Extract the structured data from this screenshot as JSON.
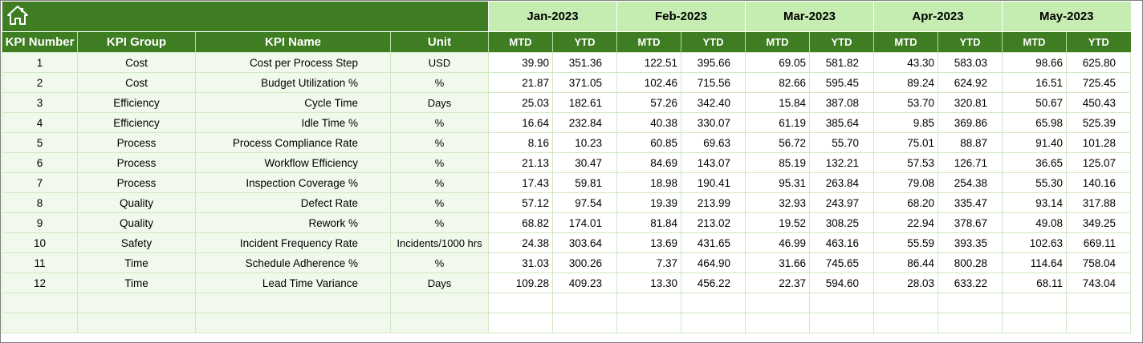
{
  "months": [
    "Jan-2023",
    "Feb-2023",
    "Mar-2023",
    "Apr-2023",
    "May-2023"
  ],
  "headers": {
    "kpi_number": "KPI Number",
    "kpi_group": "KPI Group",
    "kpi_name": "KPI Name",
    "unit": "Unit",
    "mtd": "MTD",
    "ytd": "YTD"
  },
  "rows": [
    {
      "num": "1",
      "group": "Cost",
      "name": "Cost per Process Step",
      "unit": "USD",
      "vals": [
        "39.90",
        "351.36",
        "122.51",
        "395.66",
        "69.05",
        "581.82",
        "43.30",
        "583.03",
        "98.66",
        "625.80"
      ]
    },
    {
      "num": "2",
      "group": "Cost",
      "name": "Budget Utilization %",
      "unit": "%",
      "vals": [
        "21.87",
        "371.05",
        "102.46",
        "715.56",
        "82.66",
        "595.45",
        "89.24",
        "624.92",
        "16.51",
        "725.45"
      ]
    },
    {
      "num": "3",
      "group": "Efficiency",
      "name": "Cycle Time",
      "unit": "Days",
      "vals": [
        "25.03",
        "182.61",
        "57.26",
        "342.40",
        "15.84",
        "387.08",
        "53.70",
        "320.81",
        "50.67",
        "450.43"
      ]
    },
    {
      "num": "4",
      "group": "Efficiency",
      "name": "Idle Time %",
      "unit": "%",
      "vals": [
        "16.64",
        "232.84",
        "40.38",
        "330.07",
        "61.19",
        "385.64",
        "9.85",
        "369.86",
        "65.98",
        "525.39"
      ]
    },
    {
      "num": "5",
      "group": "Process",
      "name": "Process Compliance Rate",
      "unit": "%",
      "vals": [
        "8.16",
        "10.23",
        "60.85",
        "69.63",
        "56.72",
        "55.70",
        "75.01",
        "88.87",
        "91.40",
        "101.28"
      ]
    },
    {
      "num": "6",
      "group": "Process",
      "name": "Workflow Efficiency",
      "unit": "%",
      "vals": [
        "21.13",
        "30.47",
        "84.69",
        "143.07",
        "85.19",
        "132.21",
        "57.53",
        "126.71",
        "36.65",
        "125.07"
      ]
    },
    {
      "num": "7",
      "group": "Process",
      "name": "Inspection Coverage %",
      "unit": "%",
      "vals": [
        "17.43",
        "59.81",
        "18.98",
        "190.41",
        "95.31",
        "263.84",
        "79.08",
        "254.38",
        "55.30",
        "140.16"
      ]
    },
    {
      "num": "8",
      "group": "Quality",
      "name": "Defect Rate",
      "unit": "%",
      "vals": [
        "57.12",
        "97.54",
        "19.39",
        "213.99",
        "32.93",
        "243.97",
        "68.20",
        "335.47",
        "93.14",
        "317.88"
      ]
    },
    {
      "num": "9",
      "group": "Quality",
      "name": "Rework %",
      "unit": "%",
      "vals": [
        "68.82",
        "174.01",
        "81.84",
        "213.02",
        "19.52",
        "308.25",
        "22.94",
        "378.67",
        "49.08",
        "349.25"
      ]
    },
    {
      "num": "10",
      "group": "Safety",
      "name": "Incident Frequency Rate",
      "unit": "Incidents/1000 hrs",
      "vals": [
        "24.38",
        "303.64",
        "13.69",
        "431.65",
        "46.99",
        "463.16",
        "55.59",
        "393.35",
        "102.63",
        "669.11"
      ]
    },
    {
      "num": "11",
      "group": "Time",
      "name": "Schedule Adherence %",
      "unit": "%",
      "vals": [
        "31.03",
        "300.26",
        "7.37",
        "464.90",
        "31.66",
        "745.65",
        "86.44",
        "800.28",
        "114.64",
        "758.04"
      ]
    },
    {
      "num": "12",
      "group": "Time",
      "name": "Lead Time Variance",
      "unit": "Days",
      "vals": [
        "109.28",
        "409.23",
        "13.30",
        "456.22",
        "22.37",
        "594.60",
        "28.03",
        "633.22",
        "68.11",
        "743.04"
      ]
    }
  ],
  "empty_rows": 2,
  "icons": {
    "home": "home-icon"
  },
  "colors": {
    "header_green": "#3e7d22",
    "month_header": "#c5edb1",
    "left_cells": "#f1f9ec"
  }
}
